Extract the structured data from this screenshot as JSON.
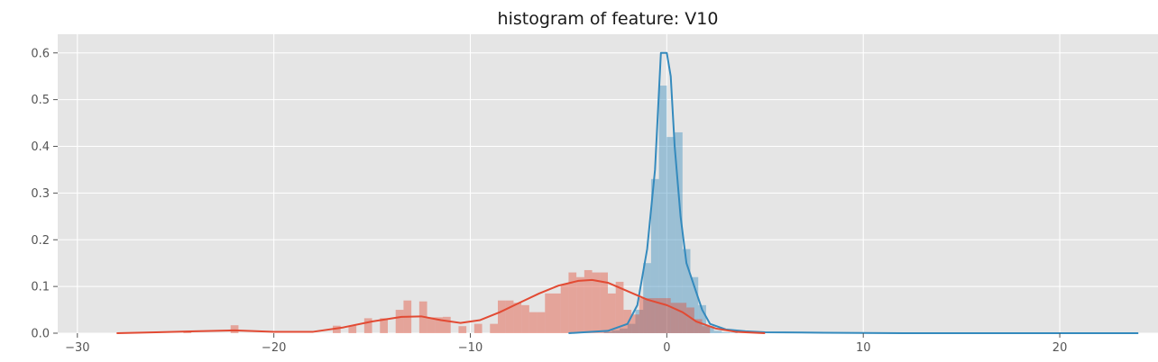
{
  "chart_data": {
    "type": "histogram",
    "title": "histogram of feature: V10",
    "xlabel": "",
    "ylabel": "",
    "xlim": [
      -31,
      25
    ],
    "ylim": [
      0,
      0.64
    ],
    "x_ticks": [
      -30,
      -20,
      -10,
      0,
      10,
      20
    ],
    "y_ticks": [
      0.0,
      0.1,
      0.2,
      0.3,
      0.4,
      0.5,
      0.6
    ],
    "x_tick_labels": [
      "−30",
      "−20",
      "−10",
      "0",
      "10",
      "20"
    ],
    "y_tick_labels": [
      "0.0",
      "0.1",
      "0.2",
      "0.3",
      "0.4",
      "0.5",
      "0.6"
    ],
    "grid": true,
    "background": "#e5e5e5",
    "series": [
      {
        "key": "class_0",
        "color": "#348abd",
        "bins": [
          [
            -3.2,
            0.003
          ],
          [
            -2.8,
            0.006
          ],
          [
            -2.4,
            0.01
          ],
          [
            -2.0,
            0.02
          ],
          [
            -1.6,
            0.05
          ],
          [
            -1.2,
            0.15
          ],
          [
            -0.8,
            0.33
          ],
          [
            -0.4,
            0.53
          ],
          [
            0.0,
            0.42
          ],
          [
            0.4,
            0.43
          ],
          [
            0.8,
            0.18
          ],
          [
            1.2,
            0.12
          ],
          [
            1.6,
            0.06
          ],
          [
            2.0,
            0.015
          ],
          [
            2.4,
            0.005
          ],
          [
            2.8,
            0.002
          ],
          [
            3.2,
            0.001
          ]
        ],
        "kde": [
          [
            -5,
            0.0
          ],
          [
            -3,
            0.005
          ],
          [
            -2,
            0.02
          ],
          [
            -1.5,
            0.06
          ],
          [
            -1.0,
            0.18
          ],
          [
            -0.6,
            0.35
          ],
          [
            -0.3,
            0.6
          ],
          [
            0.0,
            0.6
          ],
          [
            0.2,
            0.55
          ],
          [
            0.4,
            0.4
          ],
          [
            0.7,
            0.25
          ],
          [
            1.0,
            0.15
          ],
          [
            1.4,
            0.1
          ],
          [
            1.8,
            0.05
          ],
          [
            2.2,
            0.02
          ],
          [
            3.0,
            0.008
          ],
          [
            4.0,
            0.004
          ],
          [
            5.0,
            0.002
          ],
          [
            8.0,
            0.001
          ],
          [
            12.0,
            0.0
          ],
          [
            24.0,
            0.0
          ]
        ]
      },
      {
        "key": "class_1",
        "color": "#e24a33",
        "bins": [
          [
            -24.6,
            0.005
          ],
          [
            -22.2,
            0.017
          ],
          [
            -17.0,
            0.016
          ],
          [
            -16.2,
            0.016
          ],
          [
            -15.4,
            0.032
          ],
          [
            -14.6,
            0.032
          ],
          [
            -13.8,
            0.05
          ],
          [
            -13.4,
            0.07
          ],
          [
            -12.6,
            0.068
          ],
          [
            -12.2,
            0.034
          ],
          [
            -11.8,
            0.034
          ],
          [
            -11.4,
            0.035
          ],
          [
            -10.6,
            0.015
          ],
          [
            -9.8,
            0.02
          ],
          [
            -9.0,
            0.02
          ],
          [
            -8.6,
            0.07
          ],
          [
            -8.2,
            0.07
          ],
          [
            -7.8,
            0.065
          ],
          [
            -7.4,
            0.06
          ],
          [
            -7.0,
            0.045
          ],
          [
            -6.6,
            0.045
          ],
          [
            -6.2,
            0.085
          ],
          [
            -5.8,
            0.085
          ],
          [
            -5.4,
            0.105
          ],
          [
            -5.0,
            0.13
          ],
          [
            -4.6,
            0.12
          ],
          [
            -4.2,
            0.135
          ],
          [
            -3.8,
            0.13
          ],
          [
            -3.4,
            0.13
          ],
          [
            -3.0,
            0.085
          ],
          [
            -2.6,
            0.11
          ],
          [
            -2.2,
            0.05
          ],
          [
            -1.8,
            0.04
          ],
          [
            -1.4,
            0.075
          ],
          [
            -1.0,
            0.075
          ],
          [
            -0.6,
            0.075
          ],
          [
            -0.2,
            0.075
          ],
          [
            0.2,
            0.065
          ],
          [
            0.6,
            0.065
          ],
          [
            1.0,
            0.055
          ],
          [
            1.4,
            0.03
          ],
          [
            1.8,
            0.015
          ]
        ],
        "kde": [
          [
            -28,
            0.0
          ],
          [
            -26,
            0.002
          ],
          [
            -24,
            0.004
          ],
          [
            -22,
            0.006
          ],
          [
            -20,
            0.003
          ],
          [
            -18,
            0.003
          ],
          [
            -16.5,
            0.012
          ],
          [
            -15,
            0.025
          ],
          [
            -13.5,
            0.035
          ],
          [
            -12.5,
            0.036
          ],
          [
            -11.5,
            0.028
          ],
          [
            -10.5,
            0.022
          ],
          [
            -9.5,
            0.028
          ],
          [
            -8.5,
            0.045
          ],
          [
            -7.5,
            0.065
          ],
          [
            -6.5,
            0.085
          ],
          [
            -5.5,
            0.102
          ],
          [
            -4.5,
            0.112
          ],
          [
            -3.8,
            0.114
          ],
          [
            -3.0,
            0.108
          ],
          [
            -2.0,
            0.09
          ],
          [
            -1.0,
            0.072
          ],
          [
            0.0,
            0.06
          ],
          [
            0.8,
            0.045
          ],
          [
            1.5,
            0.025
          ],
          [
            2.5,
            0.01
          ],
          [
            3.5,
            0.003
          ],
          [
            5.0,
            0.0
          ]
        ]
      }
    ]
  }
}
